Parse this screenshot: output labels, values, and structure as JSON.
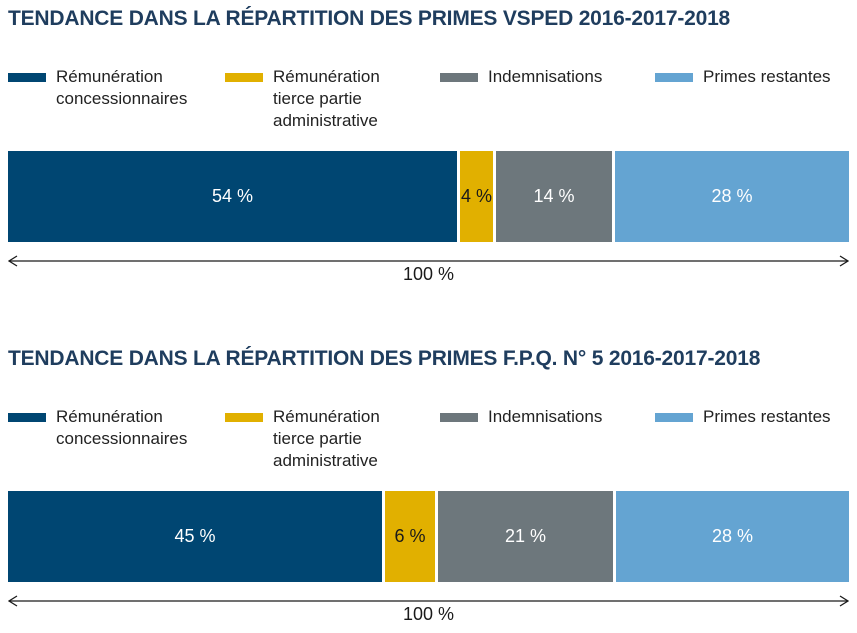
{
  "chart_data": [
    {
      "type": "bar",
      "stacked": true,
      "orientation": "horizontal",
      "title": "TENDANCE DANS LA RÉPARTITION DES PRIMES VSPED 2016-2017-2018",
      "series": [
        {
          "name": "Rémunération concessionnaires",
          "legend_lines": [
            "Rémunération",
            "concessionnaires"
          ],
          "value": 54,
          "label": "54 %",
          "color": "#004672",
          "text_color": "#ffffff"
        },
        {
          "name": "Rémunération tierce partie administrative",
          "legend_lines": [
            "Rémunération",
            "tierce partie",
            "administrative"
          ],
          "value": 4,
          "label": "4 %",
          "color": "#e1b000",
          "text_color": "#1a1a1a"
        },
        {
          "name": "Indemnisations",
          "legend_lines": [
            "Indemnisations"
          ],
          "value": 14,
          "label": "14 %",
          "color": "#6d777c",
          "text_color": "#ffffff"
        },
        {
          "name": "Primes restantes",
          "legend_lines": [
            "Primes restantes"
          ],
          "value": 28,
          "label": "28 %",
          "color": "#64a4d2",
          "text_color": "#ffffff"
        }
      ],
      "total_label": "100 %",
      "xlim": [
        0,
        100
      ]
    },
    {
      "type": "bar",
      "stacked": true,
      "orientation": "horizontal",
      "title": "TENDANCE DANS LA RÉPARTITION DES PRIMES F.P.Q. N° 5 2016-2017-2018",
      "series": [
        {
          "name": "Rémunération concessionnaires",
          "legend_lines": [
            "Rémunération",
            "concessionnaires"
          ],
          "value": 45,
          "label": "45 %",
          "color": "#004672",
          "text_color": "#ffffff"
        },
        {
          "name": "Rémunération tierce partie administrative",
          "legend_lines": [
            "Rémunération",
            "tierce partie",
            "administrative"
          ],
          "value": 6,
          "label": "6 %",
          "color": "#e1b000",
          "text_color": "#1a1a1a"
        },
        {
          "name": "Indemnisations",
          "legend_lines": [
            "Indemnisations"
          ],
          "value": 21,
          "label": "21 %",
          "color": "#6d777c",
          "text_color": "#ffffff"
        },
        {
          "name": "Primes restantes",
          "legend_lines": [
            "Primes restantes"
          ],
          "value": 28,
          "label": "28 %",
          "color": "#64a4d2",
          "text_color": "#ffffff"
        }
      ],
      "total_label": "100 %",
      "xlim": [
        0,
        100
      ]
    }
  ]
}
